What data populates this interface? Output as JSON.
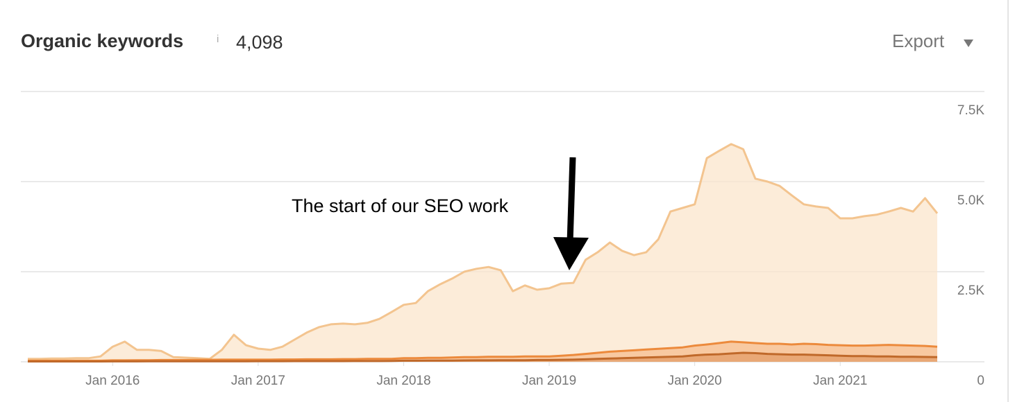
{
  "header": {
    "title": "Organic keywords",
    "info": "i",
    "value": "4,098",
    "export": "Export"
  },
  "chart_data": {
    "type": "area",
    "annotation": "The start of our SEO work",
    "xlim": [
      "2015-06",
      "2021-09"
    ],
    "xticks": [
      {
        "value": "2016-01",
        "label": "Jan 2016"
      },
      {
        "value": "2017-01",
        "label": "Jan 2017"
      },
      {
        "value": "2018-01",
        "label": "Jan 2018"
      },
      {
        "value": "2019-01",
        "label": "Jan 2019"
      },
      {
        "value": "2020-01",
        "label": "Jan 2020"
      },
      {
        "value": "2021-01",
        "label": "Jan 2021"
      }
    ],
    "ylim": [
      0,
      7500
    ],
    "yticks": [
      0,
      {
        "value": 2500,
        "label": "2.5K"
      },
      {
        "value": 5000,
        "label": "5.0K"
      },
      {
        "value": 7500,
        "label": "7.5K"
      }
    ],
    "grid": true,
    "x": [
      "2015-06",
      "2015-07",
      "2015-08",
      "2015-09",
      "2015-10",
      "2015-11",
      "2015-12",
      "2016-01",
      "2016-02",
      "2016-03",
      "2016-04",
      "2016-05",
      "2016-06",
      "2016-07",
      "2016-08",
      "2016-09",
      "2016-10",
      "2016-11",
      "2016-12",
      "2017-01",
      "2017-02",
      "2017-03",
      "2017-04",
      "2017-05",
      "2017-06",
      "2017-07",
      "2017-08",
      "2017-09",
      "2017-10",
      "2017-11",
      "2017-12",
      "2018-01",
      "2018-02",
      "2018-03",
      "2018-04",
      "2018-05",
      "2018-06",
      "2018-07",
      "2018-08",
      "2018-09",
      "2018-10",
      "2018-11",
      "2018-12",
      "2019-01",
      "2019-02",
      "2019-03",
      "2019-04",
      "2019-05",
      "2019-06",
      "2019-07",
      "2019-08",
      "2019-09",
      "2019-10",
      "2019-11",
      "2019-12",
      "2020-01",
      "2020-02",
      "2020-03",
      "2020-04",
      "2020-05",
      "2020-06",
      "2020-07",
      "2020-08",
      "2020-09",
      "2020-10",
      "2020-11",
      "2020-12",
      "2021-01",
      "2021-02",
      "2021-03",
      "2021-04",
      "2021-05",
      "2021-06",
      "2021-07",
      "2021-08",
      "2021-09"
    ],
    "series": [
      {
        "color": "#f3c48f",
        "fill": "#fbe5cc",
        "values": [
          80,
          80,
          90,
          90,
          100,
          100,
          150,
          420,
          560,
          330,
          330,
          300,
          130,
          115,
          100,
          80,
          330,
          750,
          460,
          365,
          330,
          420,
          615,
          810,
          960,
          1040,
          1060,
          1040,
          1080,
          1190,
          1380,
          1580,
          1630,
          1960,
          2150,
          2310,
          2500,
          2580,
          2630,
          2540,
          1960,
          2120,
          2000,
          2040,
          2170,
          2190,
          2830,
          3040,
          3310,
          3080,
          2960,
          3040,
          3400,
          4170,
          4270,
          4370,
          5650,
          5850,
          6040,
          5900,
          5080,
          5000,
          4880,
          4620,
          4370,
          4310,
          4270,
          3980,
          3980,
          4040,
          4080,
          4170,
          4270,
          4170,
          4540,
          4120
        ]
      },
      {
        "color": "#ec8a3c",
        "fill": "#f5b27c",
        "values": [
          30,
          30,
          30,
          30,
          30,
          30,
          30,
          40,
          40,
          45,
          45,
          50,
          50,
          50,
          55,
          55,
          60,
          60,
          60,
          60,
          60,
          65,
          65,
          70,
          70,
          70,
          75,
          75,
          80,
          80,
          80,
          100,
          100,
          110,
          110,
          120,
          130,
          130,
          140,
          140,
          140,
          150,
          150,
          150,
          170,
          190,
          220,
          250,
          280,
          300,
          320,
          340,
          360,
          380,
          400,
          450,
          480,
          520,
          560,
          540,
          520,
          500,
          500,
          480,
          500,
          490,
          470,
          460,
          450,
          450,
          460,
          470,
          460,
          450,
          440,
          420
        ]
      },
      {
        "color": "#c0692a",
        "fill": "#e0935a",
        "values": [
          10,
          10,
          10,
          10,
          10,
          10,
          10,
          12,
          12,
          12,
          14,
          14,
          14,
          15,
          15,
          15,
          16,
          16,
          16,
          18,
          18,
          18,
          20,
          20,
          20,
          20,
          20,
          22,
          22,
          22,
          25,
          30,
          30,
          32,
          35,
          35,
          38,
          40,
          40,
          42,
          45,
          45,
          50,
          50,
          55,
          60,
          70,
          80,
          90,
          100,
          110,
          120,
          130,
          140,
          150,
          180,
          200,
          210,
          230,
          250,
          240,
          220,
          210,
          200,
          200,
          190,
          180,
          170,
          160,
          160,
          150,
          150,
          140,
          140,
          135,
          130
        ]
      }
    ]
  }
}
